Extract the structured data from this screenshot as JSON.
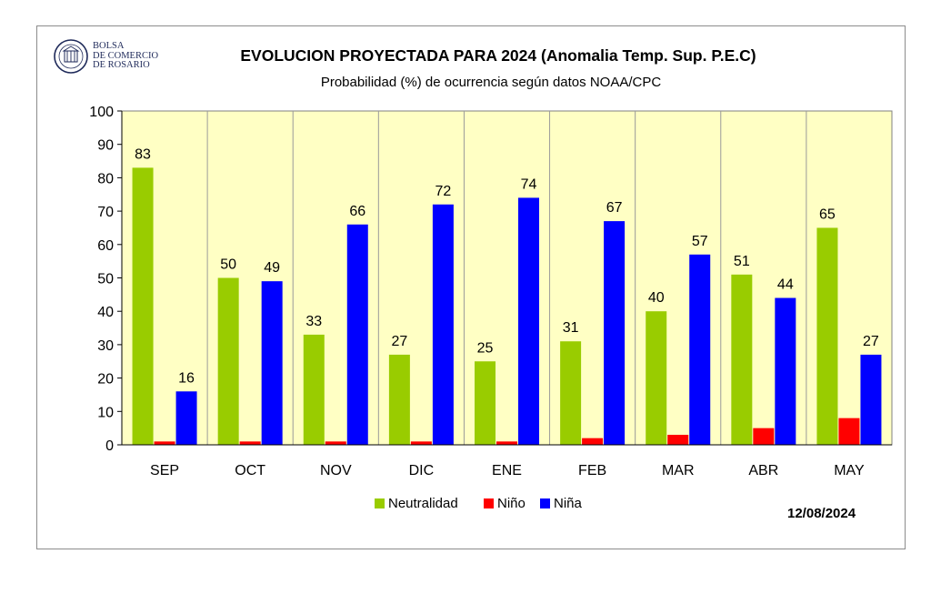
{
  "header": {
    "title": "EVOLUCION PROYECTADA PARA 2024 (Anomalia Temp. Sup. P.E.C)",
    "subtitle": "Probabilidad (%) de ocurrencia según datos NOAA/CPC",
    "logo_name": "BOLSA\nDE COMERCIO\nDE ROSARIO",
    "date": "12/08/2024"
  },
  "colors": {
    "plot_background": "#ffffc4",
    "neutralidad": "#99cc00",
    "nino": "#ff0000",
    "nina": "#0000ff"
  },
  "chart_data": {
    "type": "bar",
    "title": "EVOLUCION PROYECTADA PARA 2024 (Anomalia Temp. Sup. P.E.C)",
    "subtitle": "Probabilidad (%) de ocurrencia según datos NOAA/CPC",
    "categories": [
      "SEP",
      "OCT",
      "NOV",
      "DIC",
      "ENE",
      "FEB",
      "MAR",
      "ABR",
      "MAY"
    ],
    "series": [
      {
        "name": "Neutralidad",
        "values": [
          83,
          50,
          33,
          27,
          25,
          31,
          40,
          51,
          65
        ],
        "labels": [
          "83",
          "50",
          "33",
          "27",
          "25",
          "31",
          "40",
          "51",
          "65"
        ]
      },
      {
        "name": "Niño",
        "values": [
          1,
          1,
          1,
          1,
          1,
          2,
          3,
          5,
          8
        ],
        "labels": null
      },
      {
        "name": "Niña",
        "values": [
          16,
          49,
          66,
          72,
          74,
          67,
          57,
          44,
          27
        ],
        "labels": [
          "16",
          "49",
          "66",
          "72",
          "74",
          "67",
          "57",
          "44",
          "27"
        ]
      }
    ],
    "ylim": [
      0,
      100
    ],
    "yticks": [
      "0",
      "10",
      "20",
      "30",
      "40",
      "50",
      "60",
      "70",
      "80",
      "90",
      "100"
    ],
    "grid": "vertical",
    "legend_position": "bottom",
    "xlabel": "",
    "ylabel": ""
  }
}
